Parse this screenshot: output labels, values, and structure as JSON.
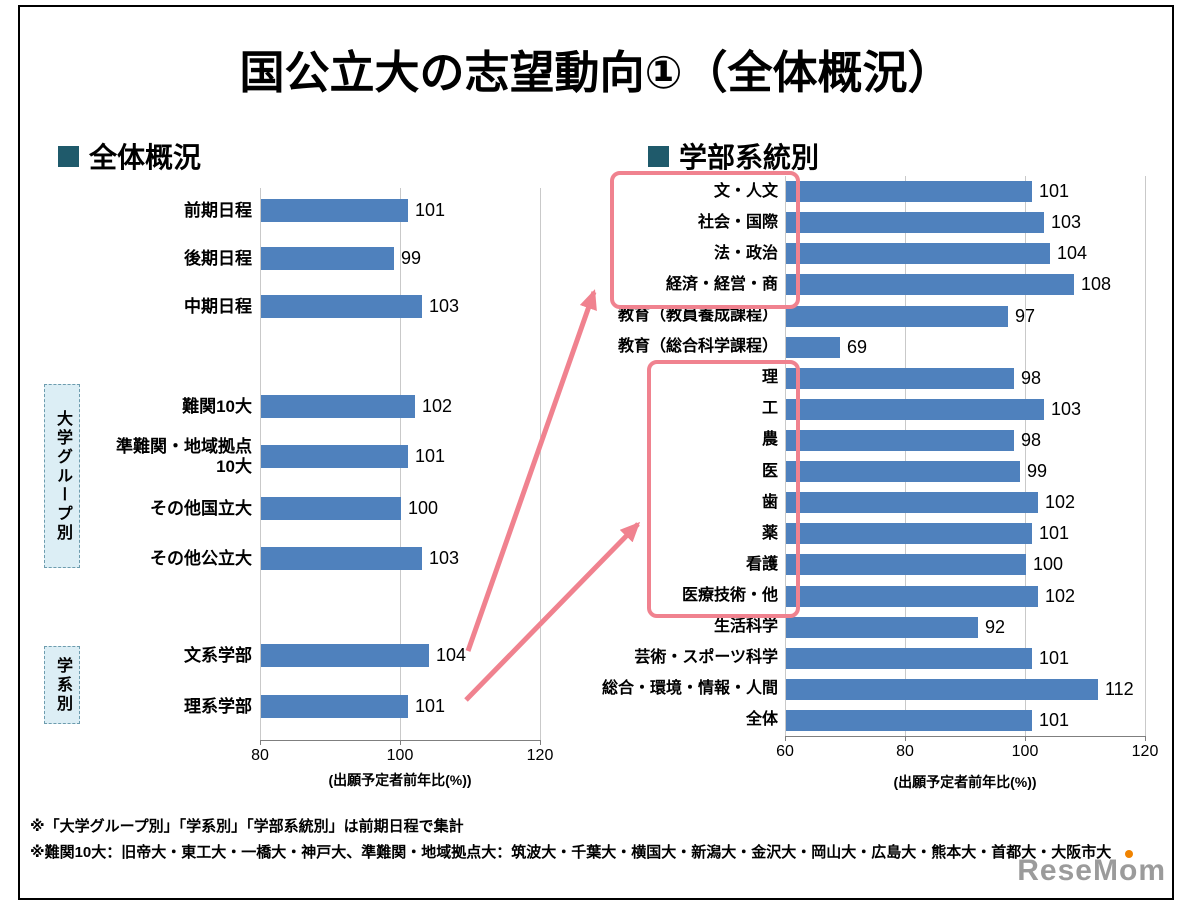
{
  "page": {
    "title": "国公立大の志望動向①（全体概況）",
    "sections": {
      "left": {
        "header": "全体概況"
      },
      "right": {
        "header": "学部系統別"
      }
    },
    "notes": [
      "※「大学グループ別」「学系別」「学部系統別」は前期日程で集計",
      "※難関10大：旧帝大・東工大・一橋大・神戸大、準難関・地域拠点大：筑波大・千葉大・横国大・新潟大・金沢大・岡山大・広島大・熊本大・首都大・大阪市大"
    ],
    "logo": {
      "text": "ReseMom",
      "parts": [
        "Rese",
        "M",
        "o",
        "m"
      ]
    }
  },
  "colors": {
    "bar": "#4F81BD",
    "highlight": "#F0828F",
    "bullet": "#1F5A6B",
    "group_box_bg": "#DCEEF5",
    "logo_gray": "#9B9B9B",
    "logo_orange": "#F08300"
  },
  "chart_data": [
    {
      "name": "overall",
      "type": "bar",
      "orientation": "horizontal",
      "title": "全体概況",
      "xlabel": "(出願予定者前年比(%))",
      "xlim": [
        80,
        120
      ],
      "xticks": [
        "80",
        "100",
        "120"
      ],
      "groups": [
        {
          "label": null,
          "items": [
            {
              "label": "前期日程",
              "value": 101
            },
            {
              "label": "後期日程",
              "value": 99
            },
            {
              "label": "中期日程",
              "value": 103
            }
          ]
        },
        {
          "label": "大学グループ別",
          "items": [
            {
              "label": "難関10大",
              "value": 102
            },
            {
              "label": "準難関・地域拠点10大",
              "value": 101
            },
            {
              "label": "その他国立大",
              "value": 100
            },
            {
              "label": "その他公立大",
              "value": 103
            }
          ]
        },
        {
          "label": "学系別",
          "items": [
            {
              "label": "文系学部",
              "value": 104
            },
            {
              "label": "理系学部",
              "value": 101
            }
          ]
        }
      ]
    },
    {
      "name": "by_faculty",
      "type": "bar",
      "orientation": "horizontal",
      "title": "学部系統別",
      "xlabel": "(出願予定者前年比(%))",
      "xlim": [
        60,
        120
      ],
      "xticks": [
        "60",
        "80",
        "100",
        "120"
      ],
      "categories": [
        "文・人文",
        "社会・国際",
        "法・政治",
        "経済・経営・商",
        "教育（教員養成課程）",
        "教育（総合科学課程）",
        "理",
        "工",
        "農",
        "医",
        "歯",
        "薬",
        "看護",
        "医療技術・他",
        "生活科学",
        "芸術・スポーツ科学",
        "総合・環境・情報・人間",
        "全体"
      ],
      "values": [
        101,
        103,
        104,
        108,
        97,
        69,
        98,
        103,
        98,
        99,
        102,
        101,
        100,
        102,
        92,
        101,
        112,
        101
      ],
      "highlights": [
        {
          "linked_from": "文系学部",
          "categories": [
            "文・人文",
            "社会・国際",
            "法・政治",
            "経済・経営・商"
          ]
        },
        {
          "linked_from": "理系学部",
          "categories": [
            "理",
            "工",
            "農",
            "医",
            "歯",
            "薬",
            "看護",
            "医療技術・他"
          ]
        }
      ]
    }
  ]
}
